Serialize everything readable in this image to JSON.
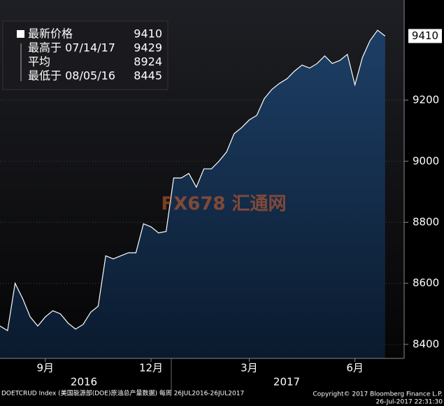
{
  "chart_data": {
    "type": "area",
    "categories": [
      null,
      null,
      null,
      null,
      null,
      null,
      "9月",
      null,
      null,
      null,
      null,
      null,
      null,
      null,
      null,
      null,
      null,
      null,
      null,
      null,
      "12月",
      null,
      null,
      null,
      null,
      null,
      null,
      null,
      null,
      null,
      null,
      null,
      null,
      "3月",
      null,
      null,
      null,
      null,
      null,
      null,
      null,
      null,
      null,
      null,
      null,
      null,
      null,
      "6月",
      null,
      null,
      null,
      null
    ],
    "values": [
      8460,
      8445,
      8600,
      8550,
      8490,
      8460,
      8490,
      8510,
      8500,
      8470,
      8450,
      8465,
      8505,
      8525,
      8690,
      8680,
      8690,
      8700,
      8700,
      8795,
      8785,
      8765,
      8770,
      8945,
      8945,
      8960,
      8915,
      8975,
      8975,
      9000,
      9030,
      9090,
      9110,
      9135,
      9150,
      9205,
      9235,
      9255,
      9270,
      9295,
      9315,
      9305,
      9320,
      9345,
      9320,
      9330,
      9350,
      9250,
      9340,
      9395,
      9429,
      9410
    ],
    "years": [
      "2016",
      "2017"
    ],
    "color": "#ffffff",
    "ylim": [
      8354,
      9528
    ],
    "yticks": [
      8400,
      8600,
      8800,
      9000,
      9200
    ],
    "grid": true,
    "legend": [
      {
        "label": "最新价格",
        "value": 9410
      },
      {
        "label": "最高于 07/14/17",
        "value": 9429
      },
      {
        "label": "平均",
        "value": 8924
      },
      {
        "label": "最低于 08/05/16",
        "value": 8445
      }
    ],
    "watermark": "FX678 汇通网",
    "footer_left": "DOETCRUD Index (美国能源部(DOE)原油总产量数据)  每周 26JUL2016-26JUL2017",
    "copyright": "Copyright© 2017 Bloomberg Finance L.P.",
    "timestamp": "26-Jul-2017 22:31:30"
  }
}
